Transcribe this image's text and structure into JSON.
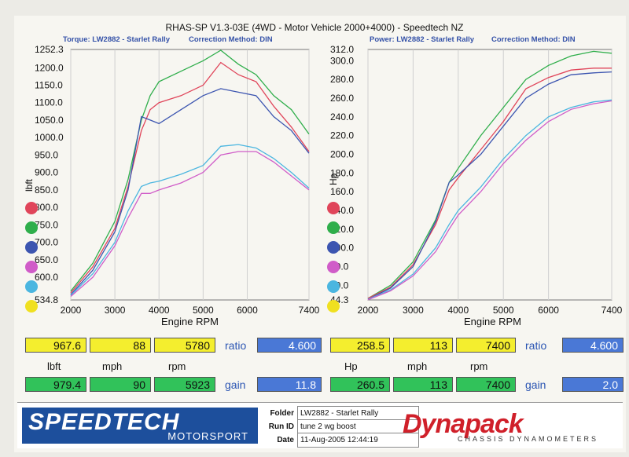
{
  "header": {
    "title": "RHAS-SP V1.3-03E  (4WD - Motor Vehicle 2000+4000) - Speedtech NZ",
    "torque_sub": "Torque: LW2882 - Starlet Rally",
    "correction_left": "Correction Method: DIN",
    "power_sub": "Power: LW2882 - Starlet Rally",
    "correction_right": "Correction Method: DIN"
  },
  "colors": {
    "red": "#e0455a",
    "green": "#2fae4b",
    "blue": "#3c55b0",
    "magenta": "#d05cc8",
    "cyan": "#4bb6e0",
    "yellow": "#f0e020"
  },
  "chart_data": [
    {
      "type": "line",
      "title": "",
      "xlabel": "Engine RPM",
      "ylabel": "lbft",
      "xlim": [
        2000,
        7400
      ],
      "ylim": [
        534.8,
        1252.3
      ],
      "x_ticks": [
        "2000",
        "3000",
        "4000",
        "5000",
        "6000",
        "7400"
      ],
      "y_ticks": [
        "534.8",
        "600.0",
        "650.0",
        "700.0",
        "750.0",
        "800.0",
        "850.0",
        "900.0",
        "950.0",
        "1000.0",
        "1050.0",
        "1100.0",
        "1150.0",
        "1200.0",
        "1252.3"
      ],
      "legend_position": "left",
      "series": [
        {
          "color": "green",
          "x": [
            2000,
            2500,
            3000,
            3300,
            3600,
            3800,
            4000,
            4500,
            5000,
            5400,
            5800,
            6200,
            6600,
            7000,
            7400
          ],
          "y": [
            560,
            640,
            760,
            880,
            1050,
            1120,
            1160,
            1190,
            1220,
            1250,
            1210,
            1180,
            1120,
            1080,
            1010
          ]
        },
        {
          "color": "red",
          "x": [
            2000,
            2500,
            3000,
            3300,
            3600,
            3800,
            4000,
            4500,
            5000,
            5400,
            5800,
            6200,
            6600,
            7000,
            7400
          ],
          "y": [
            555,
            630,
            740,
            860,
            1020,
            1080,
            1100,
            1120,
            1150,
            1215,
            1180,
            1160,
            1090,
            1030,
            960
          ]
        },
        {
          "color": "blue",
          "x": [
            2000,
            2500,
            3000,
            3300,
            3600,
            3800,
            4000,
            4500,
            5000,
            5400,
            5800,
            6200,
            6600,
            7000,
            7400
          ],
          "y": [
            550,
            620,
            730,
            850,
            1060,
            1050,
            1040,
            1080,
            1120,
            1140,
            1130,
            1120,
            1060,
            1020,
            955
          ]
        },
        {
          "color": "cyan",
          "x": [
            2000,
            2500,
            3000,
            3300,
            3600,
            3800,
            4000,
            4500,
            5000,
            5400,
            5800,
            6200,
            6600,
            7000,
            7400
          ],
          "y": [
            548,
            610,
            700,
            790,
            860,
            870,
            875,
            895,
            920,
            975,
            980,
            970,
            940,
            900,
            855
          ]
        },
        {
          "color": "magenta",
          "x": [
            2000,
            2500,
            3000,
            3300,
            3600,
            3800,
            4000,
            4500,
            5000,
            5400,
            5800,
            6200,
            6600,
            7000,
            7400
          ],
          "y": [
            545,
            600,
            690,
            770,
            840,
            840,
            850,
            870,
            900,
            950,
            960,
            960,
            930,
            890,
            850
          ]
        }
      ]
    },
    {
      "type": "line",
      "title": "",
      "xlabel": "Engine RPM",
      "ylabel": "Hp",
      "xlim": [
        2000,
        7400
      ],
      "ylim": [
        44.3,
        312.0
      ],
      "x_ticks": [
        "2000",
        "3000",
        "4000",
        "5000",
        "6000",
        "7400"
      ],
      "y_ticks": [
        "44.3",
        "60.0",
        "80.0",
        "100.0",
        "120.0",
        "140.0",
        "160.0",
        "180.0",
        "200.0",
        "220.0",
        "240.0",
        "260.0",
        "280.0",
        "300.0",
        "312.0"
      ],
      "legend_position": "left",
      "series": [
        {
          "color": "green",
          "x": [
            2000,
            2500,
            3000,
            3500,
            3800,
            4000,
            4500,
            5000,
            5500,
            6000,
            6500,
            7000,
            7400
          ],
          "y": [
            46,
            60,
            85,
            130,
            170,
            185,
            220,
            250,
            280,
            295,
            305,
            310,
            308
          ]
        },
        {
          "color": "red",
          "x": [
            2000,
            2500,
            3000,
            3500,
            3800,
            4000,
            4500,
            5000,
            5500,
            6000,
            6500,
            7000,
            7400
          ],
          "y": [
            46,
            58,
            82,
            125,
            162,
            175,
            205,
            235,
            270,
            282,
            290,
            292,
            292
          ]
        },
        {
          "color": "blue",
          "x": [
            2000,
            2500,
            3000,
            3500,
            3800,
            4000,
            4500,
            5000,
            5500,
            6000,
            6500,
            7000,
            7400
          ],
          "y": [
            45,
            57,
            80,
            128,
            170,
            178,
            200,
            230,
            260,
            275,
            285,
            287,
            288
          ]
        },
        {
          "color": "cyan",
          "x": [
            2000,
            2500,
            3000,
            3500,
            3800,
            4000,
            4500,
            5000,
            5500,
            6000,
            6500,
            7000,
            7400
          ],
          "y": [
            45,
            55,
            72,
            100,
            125,
            140,
            165,
            195,
            220,
            240,
            250,
            256,
            258
          ]
        },
        {
          "color": "magenta",
          "x": [
            2000,
            2500,
            3000,
            3500,
            3800,
            4000,
            4500,
            5000,
            5500,
            6000,
            6500,
            7000,
            7400
          ],
          "y": [
            44.5,
            54,
            70,
            96,
            120,
            135,
            160,
            190,
            215,
            235,
            248,
            254,
            257
          ]
        }
      ]
    }
  ],
  "table": {
    "row1_left": [
      "967.6",
      "88",
      "5780"
    ],
    "row1_left_label": "ratio",
    "row1_left_ratio": "4.600",
    "row1_right": [
      "258.5",
      "113",
      "7400"
    ],
    "row1_right_label": "ratio",
    "row1_right_ratio": "4.600",
    "units_left": [
      "lbft",
      "mph",
      "rpm"
    ],
    "units_right": [
      "Hp",
      "mph",
      "rpm"
    ],
    "row2_left": [
      "979.4",
      "90",
      "5923"
    ],
    "row2_left_label": "gain",
    "row2_left_gain": "11.8",
    "row2_right": [
      "260.5",
      "113",
      "7400"
    ],
    "row2_right_label": "gain",
    "row2_right_gain": "2.0"
  },
  "footer": {
    "logo_big": "SPEEDTECH",
    "logo_small": "MOTORSPORT",
    "folder_label": "Folder",
    "folder_value": "LW2882 - Starlet Rally",
    "runid_label": "Run ID",
    "runid_value": "tune 2 wg boost",
    "date_label": "Date",
    "date_value": "11-Aug-2005  12:44:19",
    "brand": "Dynapack",
    "brand_sub": "CHASSIS DYNAMOMETERS"
  }
}
